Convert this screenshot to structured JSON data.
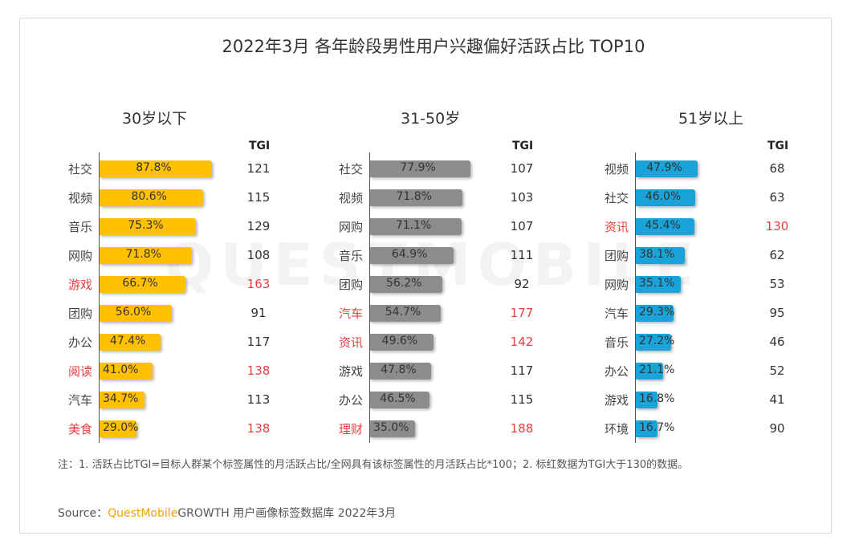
{
  "title": "2022年3月 各年龄段男性用户兴趣偏好活跃占比 TOP10",
  "watermark": "QUESTMOBILE",
  "tgi_label": "TGI",
  "colors": {
    "highlight": "#e84040"
  },
  "chart_data": [
    {
      "type": "bar",
      "orientation": "horizontal",
      "title": "30岁以下",
      "color": "#ffc000",
      "xlim": [
        0,
        100
      ],
      "categories": [
        "社交",
        "视频",
        "音乐",
        "网购",
        "游戏",
        "团购",
        "办公",
        "阅读",
        "汽车",
        "美食"
      ],
      "values": [
        87.8,
        80.6,
        75.3,
        71.8,
        66.7,
        56.0,
        47.4,
        41.0,
        34.7,
        29.0
      ],
      "value_labels": [
        "87.8%",
        "80.6%",
        "75.3%",
        "71.8%",
        "66.7%",
        "56.0%",
        "47.4%",
        "41.0%",
        "34.7%",
        "29.0%"
      ],
      "tgi": [
        121,
        115,
        129,
        108,
        163,
        91,
        117,
        138,
        113,
        138
      ],
      "highlight": [
        false,
        false,
        false,
        false,
        true,
        false,
        false,
        true,
        false,
        true
      ]
    },
    {
      "type": "bar",
      "orientation": "horizontal",
      "title": "31-50岁",
      "color": "#8c8c8c",
      "xlim": [
        0,
        100
      ],
      "categories": [
        "社交",
        "视频",
        "网购",
        "音乐",
        "团购",
        "汽车",
        "资讯",
        "游戏",
        "办公",
        "理财"
      ],
      "values": [
        77.9,
        71.8,
        71.1,
        64.9,
        56.2,
        54.7,
        49.6,
        47.8,
        46.5,
        35.0
      ],
      "value_labels": [
        "77.9%",
        "71.8%",
        "71.1%",
        "64.9%",
        "56.2%",
        "54.7%",
        "49.6%",
        "47.8%",
        "46.5%",
        "35.0%"
      ],
      "tgi": [
        107,
        103,
        107,
        111,
        92,
        177,
        142,
        117,
        115,
        188
      ],
      "highlight": [
        false,
        false,
        false,
        false,
        false,
        true,
        true,
        false,
        false,
        true
      ]
    },
    {
      "type": "bar",
      "orientation": "horizontal",
      "title": "51岁以上",
      "color": "#1aa3d9",
      "xlim": [
        0,
        100
      ],
      "categories": [
        "视频",
        "社交",
        "资讯",
        "团购",
        "网购",
        "汽车",
        "音乐",
        "办公",
        "游戏",
        "环境"
      ],
      "values": [
        47.9,
        46.0,
        45.4,
        38.1,
        35.1,
        29.3,
        27.2,
        21.1,
        16.8,
        16.7
      ],
      "value_labels": [
        "47.9%",
        "46.0%",
        "45.4%",
        "38.1%",
        "35.1%",
        "29.3%",
        "27.2%",
        "21.1%",
        "16.8%",
        "16.7%"
      ],
      "tgi": [
        68,
        63,
        130,
        62,
        53,
        95,
        46,
        52,
        41,
        90
      ],
      "highlight": [
        false,
        false,
        true,
        false,
        false,
        false,
        false,
        false,
        false,
        false
      ]
    }
  ],
  "note": "注：1. 活跃占比TGI=目标人群某个标签属性的月活跃占比/全网具有该标签属性的月活跃占比*100；2. 标红数据为TGI大于130的数据。",
  "source": {
    "prefix": "Source：",
    "brand": "QuestMobile",
    "suffix": "GROWTH 用户画像标签数据库 2022年3月"
  }
}
